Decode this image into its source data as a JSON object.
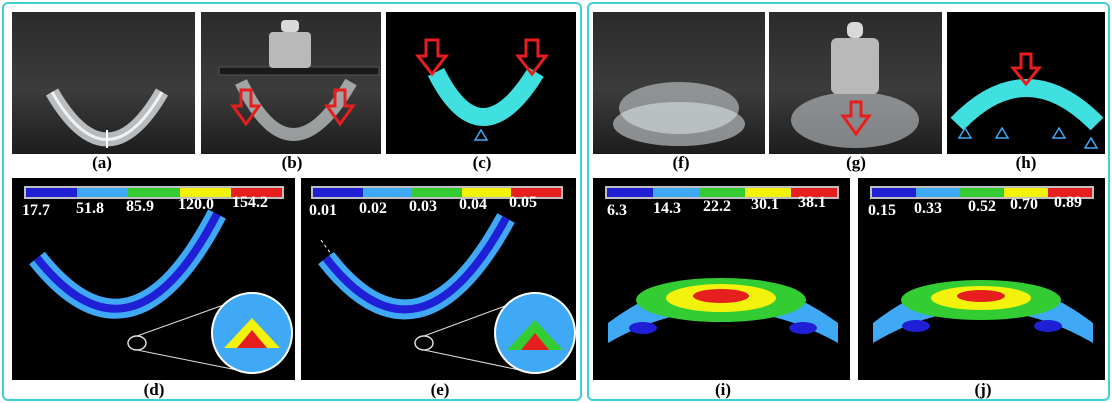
{
  "captions": {
    "a": "(a)",
    "b": "(b)",
    "c": "(c)",
    "d": "(d)",
    "e": "(e)",
    "f": "(f)",
    "g": "(g)",
    "h": "(h)",
    "i": "(i)",
    "j": "(j)"
  },
  "colorbar": {
    "colors": [
      "#1f1fd6",
      "#3fa9f5",
      "#33cc33",
      "#f2f20d",
      "#e61e1e"
    ],
    "d": [
      "17.7",
      "51.8",
      "85.9",
      "120.0",
      "154.2"
    ],
    "e": [
      "0.01",
      "0.02",
      "0.03",
      "0.04",
      "0.05"
    ],
    "i": [
      "6.3",
      "14.3",
      "22.2",
      "30.1",
      "38.1"
    ],
    "j": [
      "0.15",
      "0.33",
      "0.52",
      "0.70",
      "0.89"
    ]
  }
}
